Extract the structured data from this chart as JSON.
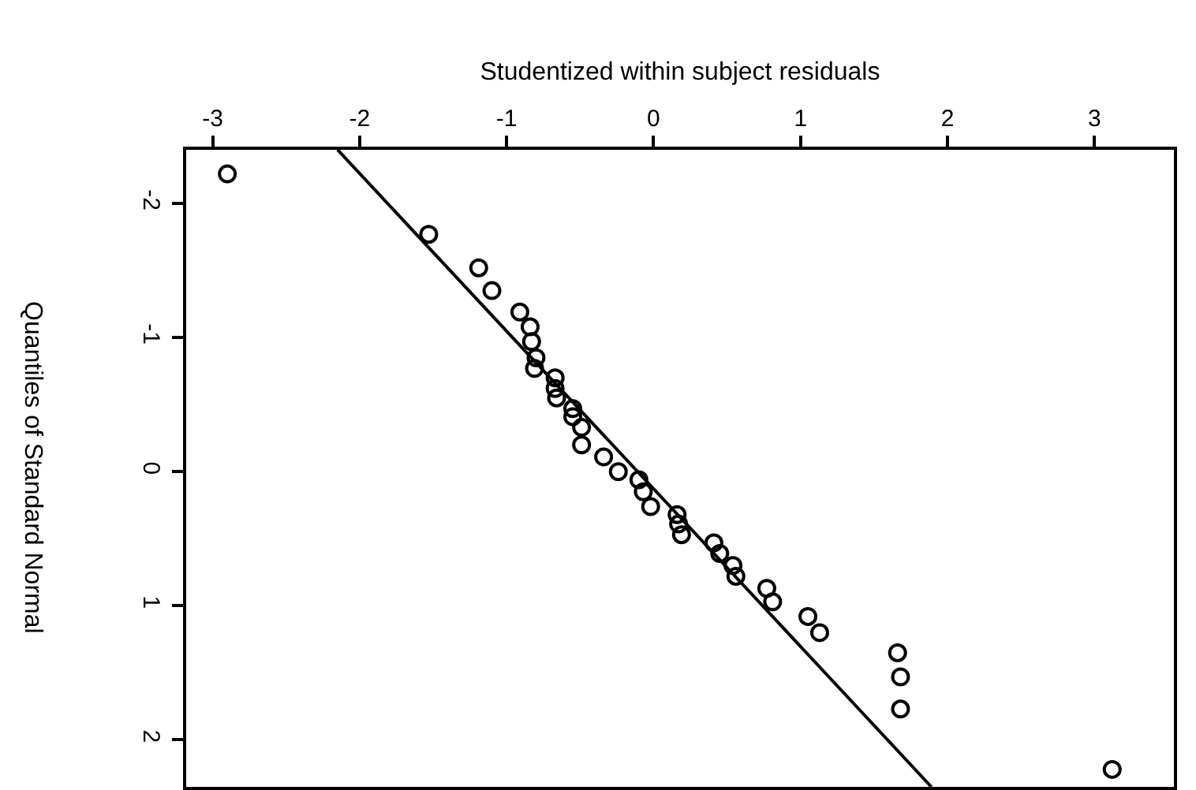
{
  "chart_data": {
    "type": "scatter",
    "xlabel": "Studentized within subject residuals",
    "ylabel": "Quantiles of Standard Normal",
    "xlim": [
      -3.18,
      3.54
    ],
    "xticks": [
      -3,
      -2,
      -1,
      0,
      1,
      2,
      3
    ],
    "ylim": [
      2.35,
      -2.4
    ],
    "yticks": [
      -2,
      -1,
      0,
      1,
      2
    ],
    "grid": false,
    "series": [
      {
        "color": "#000000",
        "marker": "circle",
        "x": [
          -2.9,
          -1.53,
          -1.19,
          -1.1,
          -0.91,
          -0.84,
          -0.83,
          -0.8,
          -0.81,
          -0.67,
          -0.67,
          -0.66,
          -0.55,
          -0.55,
          -0.49,
          -0.49,
          -0.34,
          -0.24,
          -0.1,
          -0.07,
          -0.02,
          0.16,
          0.17,
          0.19,
          0.41,
          0.45,
          0.54,
          0.56,
          0.77,
          0.81,
          1.05,
          1.13,
          1.66,
          1.68,
          1.68,
          3.12
        ],
        "values": [
          -2.22,
          -1.77,
          -1.52,
          -1.35,
          -1.19,
          -1.08,
          -0.97,
          -0.85,
          -0.77,
          -0.7,
          -0.62,
          -0.55,
          -0.47,
          -0.41,
          -0.33,
          -0.2,
          -0.11,
          0.0,
          0.06,
          0.15,
          0.26,
          0.32,
          0.39,
          0.47,
          0.53,
          0.61,
          0.7,
          0.78,
          0.87,
          0.97,
          1.08,
          1.2,
          1.35,
          1.53,
          1.77,
          2.22
        ]
      },
      {
        "type": "line",
        "color": "#000000",
        "marker": "none",
        "line_style": "solid",
        "x": [
          -2.15,
          1.89
        ],
        "values": [
          -2.4,
          2.35
        ]
      }
    ]
  }
}
